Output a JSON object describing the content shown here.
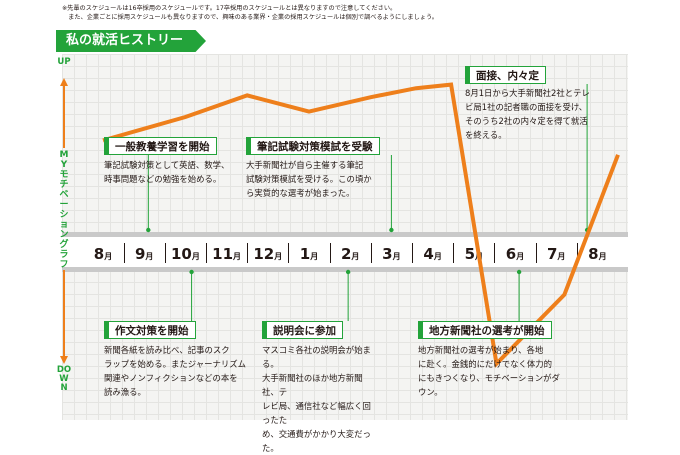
{
  "notes": [
    "※先輩のスケジュールは16卒採用のスケジュールです。17卒採用のスケジュールとは異なりますので注意してください。",
    "　また、企業ごとに採用スケジュールも異なりますので、興味のある業界・企業の採用スケジュールは個別で調べるようにしましょう。"
  ],
  "title": "私の就活ヒストリー",
  "axis": {
    "up": "UP",
    "down": "DOWN",
    "caption": "MYモチベーショングラフ",
    "color": "#23a33a",
    "arrow_color": "#ee7f1b"
  },
  "months": [
    "8月",
    "9月",
    "10月",
    "11月",
    "12月",
    "1月",
    "2月",
    "3月",
    "4月",
    "5月",
    "6月",
    "7月",
    "8月"
  ],
  "motivation_line": {
    "color": "#ee7f1b",
    "points": [
      {
        "month_index": 0,
        "level": 0.62
      },
      {
        "month_index": 2,
        "level": 0.75
      },
      {
        "month_index": 3.5,
        "level": 0.87
      },
      {
        "month_index": 5,
        "level": 0.78
      },
      {
        "month_index": 6.5,
        "level": 0.86
      },
      {
        "month_index": 7.6,
        "level": 0.91
      },
      {
        "month_index": 8.45,
        "level": 0.93
      },
      {
        "month_index": 9.55,
        "level": -0.84
      },
      {
        "month_index": 11.2,
        "level": -0.32
      },
      {
        "month_index": 12.5,
        "level": 0.54
      }
    ]
  },
  "events_above": [
    {
      "title": "一般教養学習を開始",
      "text": "筆記試験対策として英語、数学、\n時事問題などの勉強を始める。",
      "month_index": 1.1
    },
    {
      "title": "筆記試験対策模試を受験",
      "text": "大手新聞社が自ら主催する筆記\n試験対策模試を受ける。この頃か\nら実質的な選考が始まった。",
      "month_index": 7.0
    },
    {
      "title": "面接、内々定",
      "text": "8月1日から大手新聞社2社とテレ\nビ局1社の記者職の面接を受け、\nそのうち2社の内々定を得て就活\nを終える。",
      "month_index": 11.75
    }
  ],
  "events_below": [
    {
      "title": "作文対策を開始",
      "text": "新聞各紙を読み比べ、記事のスク\nラップを始める。またジャーナリズム\n関連やノンフィクションなどの本を\n読み漁る。",
      "month_index": 2.15
    },
    {
      "title": "説明会に参加",
      "text": "マスコミ各社の説明会が始まる。\n大手新聞社のほか地方新聞社、テ\nレビ局、通信社など幅広く回ったた\nめ、交通費がかかり大変だった。",
      "month_index": 5.95
    },
    {
      "title": "地方新聞社の選考が開始",
      "text": "地方新聞社の選考が始まり、各地\nに赴く。金銭的にだけでなく体力的\nにもきつくなり、モチベーションがダ\nウン。",
      "month_index": 10.1
    }
  ]
}
